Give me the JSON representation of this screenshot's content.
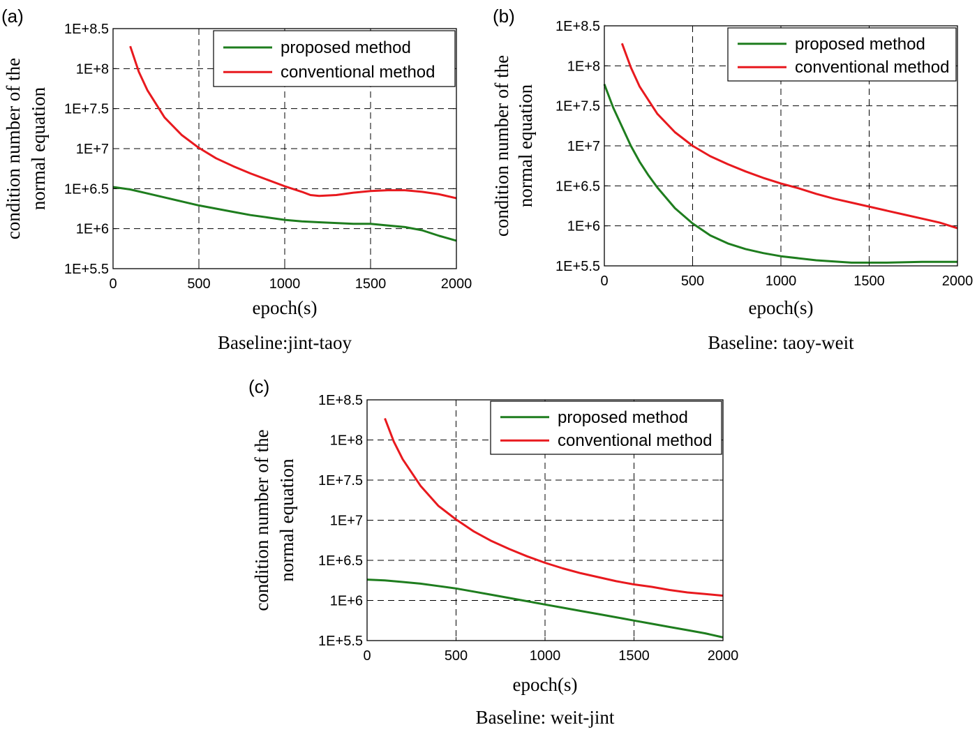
{
  "chart_data": [
    {
      "type": "line",
      "panel_label": "(a)",
      "caption": "Baseline:jint-taoy",
      "xlabel": "epoch(s)",
      "ylabel_line1": "condition number of the",
      "ylabel_line2": "normal equation",
      "xlim": [
        0,
        2000
      ],
      "ylim_log10": [
        5.5,
        8.5
      ],
      "y_scale": "log",
      "xticks": [
        0,
        500,
        1000,
        1500,
        2000
      ],
      "xtick_labels": [
        "0",
        "500",
        "1000",
        "1500",
        "2000"
      ],
      "yticks_log10": [
        5.5,
        6,
        6.5,
        7,
        7.5,
        8,
        8.5
      ],
      "ytick_labels": [
        "1E+5.5",
        "1E+6",
        "1E+6.5",
        "1E+7",
        "1E+7.5",
        "1E+8",
        "1E+8.5"
      ],
      "grid": true,
      "legend_position": "top-right",
      "series": [
        {
          "name": "proposed method",
          "color": "#1e7d1e",
          "x": [
            0,
            100,
            200,
            300,
            400,
            500,
            600,
            700,
            800,
            900,
            1000,
            1100,
            1200,
            1300,
            1400,
            1500,
            1600,
            1700,
            1800,
            1900,
            2000
          ],
          "log10y": [
            6.52,
            6.49,
            6.44,
            6.39,
            6.34,
            6.29,
            6.25,
            6.21,
            6.17,
            6.14,
            6.11,
            6.09,
            6.08,
            6.07,
            6.06,
            6.06,
            6.04,
            6.02,
            5.98,
            5.91,
            5.85
          ]
        },
        {
          "name": "conventional method",
          "color": "#e8191e",
          "x": [
            100,
            150,
            200,
            300,
            400,
            500,
            600,
            700,
            800,
            900,
            1000,
            1100,
            1150,
            1200,
            1300,
            1400,
            1500,
            1600,
            1700,
            1800,
            1900,
            2000
          ],
          "log10y": [
            8.28,
            7.96,
            7.73,
            7.39,
            7.17,
            7.01,
            6.88,
            6.78,
            6.69,
            6.61,
            6.53,
            6.46,
            6.42,
            6.41,
            6.42,
            6.45,
            6.47,
            6.48,
            6.48,
            6.46,
            6.43,
            6.38
          ]
        }
      ]
    },
    {
      "type": "line",
      "panel_label": "(b)",
      "caption": "Baseline: taoy-weit",
      "xlabel": "epoch(s)",
      "ylabel_line1": "condition number of the",
      "ylabel_line2": "normal equation",
      "xlim": [
        0,
        2000
      ],
      "ylim_log10": [
        5.5,
        8.5
      ],
      "y_scale": "log",
      "xticks": [
        0,
        500,
        1000,
        1500,
        2000
      ],
      "xtick_labels": [
        "0",
        "500",
        "1000",
        "1500",
        "2000"
      ],
      "yticks_log10": [
        5.5,
        6,
        6.5,
        7,
        7.5,
        8,
        8.5
      ],
      "ytick_labels": [
        "1E+5.5",
        "1E+6",
        "1E+6.5",
        "1E+7",
        "1E+7.5",
        "1E+8",
        "1E+8.5"
      ],
      "grid": true,
      "legend_position": "top-right",
      "series": [
        {
          "name": "proposed method",
          "color": "#1e7d1e",
          "x": [
            0,
            50,
            100,
            150,
            200,
            250,
            300,
            400,
            500,
            600,
            700,
            800,
            900,
            1000,
            1200,
            1400,
            1600,
            1800,
            2000
          ],
          "log10y": [
            7.77,
            7.48,
            7.24,
            7.0,
            6.8,
            6.63,
            6.48,
            6.22,
            6.03,
            5.88,
            5.78,
            5.71,
            5.66,
            5.62,
            5.57,
            5.54,
            5.54,
            5.55,
            5.55
          ]
        },
        {
          "name": "conventional method",
          "color": "#e8191e",
          "x": [
            100,
            150,
            200,
            300,
            400,
            500,
            600,
            700,
            800,
            900,
            1000,
            1100,
            1200,
            1300,
            1400,
            1500,
            1600,
            1700,
            1800,
            1900,
            2000
          ],
          "log10y": [
            8.28,
            7.98,
            7.74,
            7.4,
            7.17,
            7.0,
            6.87,
            6.77,
            6.68,
            6.6,
            6.53,
            6.47,
            6.4,
            6.34,
            6.29,
            6.24,
            6.19,
            6.14,
            6.09,
            6.04,
            5.97
          ]
        }
      ]
    },
    {
      "type": "line",
      "panel_label": "(c)",
      "caption": "Baseline: weit-jint",
      "xlabel": "epoch(s)",
      "ylabel_line1": "condition number of the",
      "ylabel_line2": "normal equation",
      "xlim": [
        0,
        2000
      ],
      "ylim_log10": [
        5.5,
        8.5
      ],
      "y_scale": "log",
      "xticks": [
        0,
        500,
        1000,
        1500,
        2000
      ],
      "xtick_labels": [
        "0",
        "500",
        "1000",
        "1500",
        "2000"
      ],
      "yticks_log10": [
        5.5,
        6,
        6.5,
        7,
        7.5,
        8,
        8.5
      ],
      "ytick_labels": [
        "1E+5.5",
        "1E+6",
        "1E+6.5",
        "1E+7",
        "1E+7.5",
        "1E+8",
        "1E+8.5"
      ],
      "grid": true,
      "legend_position": "top-right",
      "series": [
        {
          "name": "proposed method",
          "color": "#1e7d1e",
          "x": [
            0,
            100,
            200,
            300,
            400,
            500,
            600,
            700,
            800,
            900,
            1000,
            1100,
            1200,
            1300,
            1400,
            1500,
            1600,
            1700,
            1800,
            1900,
            2000
          ],
          "log10y": [
            6.26,
            6.25,
            6.23,
            6.21,
            6.18,
            6.15,
            6.11,
            6.07,
            6.03,
            5.99,
            5.95,
            5.91,
            5.87,
            5.83,
            5.79,
            5.75,
            5.71,
            5.67,
            5.63,
            5.59,
            5.54
          ]
        },
        {
          "name": "conventional method",
          "color": "#e8191e",
          "x": [
            100,
            150,
            200,
            300,
            400,
            500,
            600,
            700,
            800,
            900,
            1000,
            1100,
            1200,
            1300,
            1400,
            1500,
            1600,
            1700,
            1800,
            1900,
            2000
          ],
          "log10y": [
            8.27,
            7.98,
            7.76,
            7.43,
            7.18,
            7.01,
            6.86,
            6.74,
            6.64,
            6.55,
            6.47,
            6.4,
            6.34,
            6.29,
            6.24,
            6.2,
            6.17,
            6.13,
            6.1,
            6.08,
            6.06
          ]
        }
      ]
    }
  ]
}
